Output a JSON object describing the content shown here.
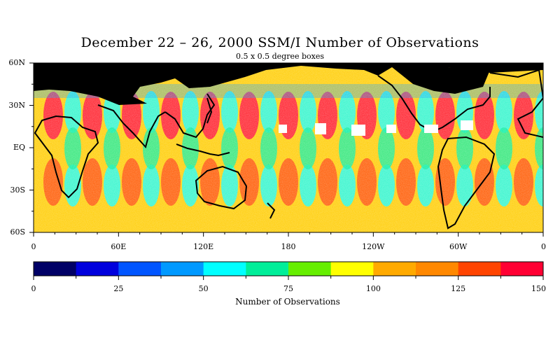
{
  "title": "December 22 – 26, 2000 SSM/I Number of Observations",
  "subtitle": "0.5 x 0.5 degree boxes",
  "map": {
    "lat_labels": [
      "60N",
      "30N",
      "EQ",
      "30S",
      "60S"
    ],
    "lon_labels": [
      "0",
      "60E",
      "120E",
      "180",
      "120W",
      "60W",
      "0"
    ],
    "lat_range": [
      -60,
      60
    ],
    "lon_range": [
      0,
      360
    ],
    "land_color": "#000000",
    "missing_color": "#ffffff"
  },
  "colorbar": {
    "title": "Number of Observations",
    "tick_labels": [
      "0",
      "25",
      "50",
      "75",
      "100",
      "125",
      "150"
    ],
    "range": [
      0,
      150
    ],
    "colors": [
      "#000066",
      "#0000dd",
      "#0055ff",
      "#0099ff",
      "#00ffff",
      "#00ee99",
      "#66ee00",
      "#ffff00",
      "#ffaa00",
      "#ff8800",
      "#ff4400",
      "#ff0033"
    ]
  }
}
